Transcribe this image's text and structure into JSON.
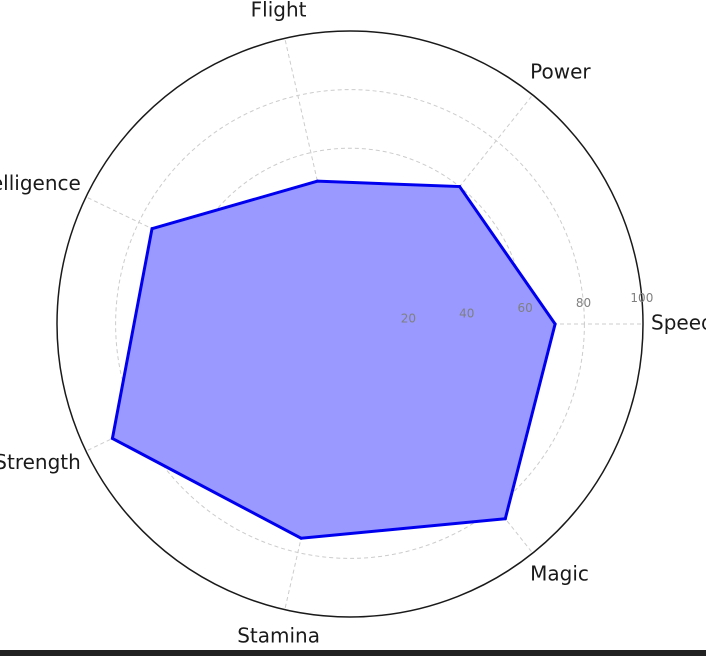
{
  "chart_data": {
    "type": "radar",
    "axes": [
      "Speed",
      "Power",
      "Flight",
      "Intelligence",
      "Strength",
      "Stamina",
      "Magic"
    ],
    "series": [
      {
        "values": [
          70,
          60,
          50,
          75,
          90,
          75,
          85
        ]
      }
    ],
    "rlim": [
      0,
      100
    ],
    "r_ticks": [
      20,
      40,
      60,
      80,
      100
    ],
    "grid": true,
    "colors": {
      "fill": "#9999ff",
      "line": "#0000ee",
      "grid": "#cccccc",
      "outline": "#1a1a1a",
      "tick_text": "#808080"
    }
  }
}
